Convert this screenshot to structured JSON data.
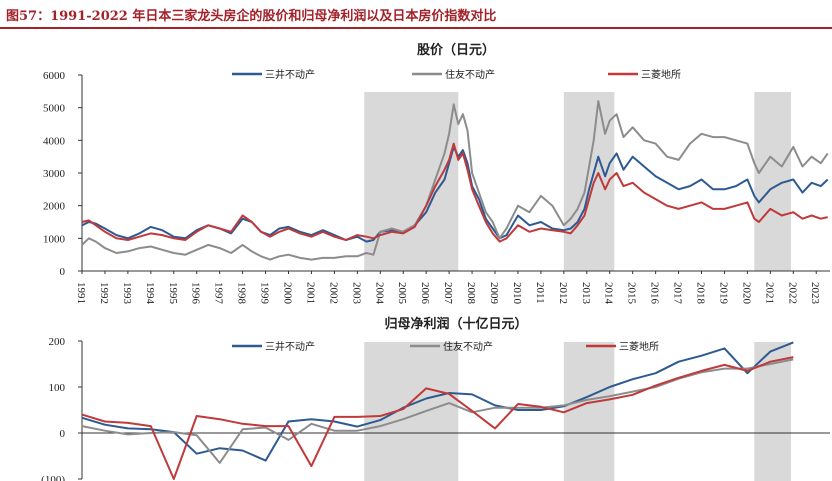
{
  "figure": {
    "title": "图57：1991-2022 年日本三家龙头房企的股价和归母净利润以及日本房价指数对比"
  },
  "colors": {
    "mitsui": "#2e5a92",
    "sumitomo": "#8c8c8c",
    "mitsubishi": "#c0393b",
    "shade": "#d9d9d9",
    "title": "#a3222a"
  },
  "chart_data": [
    {
      "type": "line",
      "title": "股价（日元）",
      "ylim": [
        0,
        6000
      ],
      "yticks": [
        "0",
        "1000",
        "2000",
        "3000",
        "4000",
        "5000",
        "6000"
      ],
      "xticks": [
        "1991",
        "1992",
        "1993",
        "1994",
        "1995",
        "1996",
        "1997",
        "1998",
        "1999",
        "2000",
        "2001",
        "2002",
        "2003",
        "2004",
        "2005",
        "2006",
        "2007",
        "2008",
        "2009",
        "2010",
        "2011",
        "2012",
        "2013",
        "2014",
        "2015",
        "2016",
        "2017",
        "2018",
        "2019",
        "2020",
        "2021",
        "2022",
        "2023"
      ],
      "legend_position": "top",
      "shaded_periods": [
        [
          2003.3,
          2007.4
        ],
        [
          2012.0,
          2014.2
        ],
        [
          2020.3,
          2021.9
        ]
      ],
      "series": [
        {
          "name": "三井不动产",
          "key": "mitsui",
          "x": [
            1991.0,
            1991.3,
            1991.6,
            1992.0,
            1992.5,
            1993.0,
            1993.5,
            1994.0,
            1994.5,
            1995.0,
            1995.5,
            1996.0,
            1996.5,
            1997.0,
            1997.5,
            1998.0,
            1998.4,
            1998.8,
            1999.2,
            1999.6,
            2000.0,
            2000.5,
            2001.0,
            2001.5,
            2002.0,
            2002.5,
            2003.0,
            2003.4,
            2003.7,
            2004.0,
            2004.5,
            2005.0,
            2005.5,
            2006.0,
            2006.4,
            2006.8,
            2007.0,
            2007.2,
            2007.4,
            2007.6,
            2007.8,
            2008.0,
            2008.3,
            2008.6,
            2008.9,
            2009.2,
            2009.5,
            2010.0,
            2010.5,
            2011.0,
            2011.5,
            2012.0,
            2012.3,
            2012.6,
            2012.9,
            2013.1,
            2013.3,
            2013.5,
            2013.8,
            2014.0,
            2014.3,
            2014.6,
            2015.0,
            2015.5,
            2016.0,
            2016.5,
            2017.0,
            2017.5,
            2018.0,
            2018.5,
            2019.0,
            2019.5,
            2020.0,
            2020.3,
            2020.5,
            2021.0,
            2021.5,
            2022.0,
            2022.4,
            2022.8,
            2023.2,
            2023.5
          ],
          "y": [
            1400,
            1500,
            1450,
            1300,
            1100,
            1000,
            1150,
            1350,
            1250,
            1050,
            1000,
            1250,
            1400,
            1300,
            1150,
            1600,
            1500,
            1200,
            1100,
            1300,
            1350,
            1200,
            1100,
            1250,
            1100,
            950,
            1050,
            900,
            950,
            1200,
            1250,
            1200,
            1400,
            1800,
            2400,
            2800,
            3300,
            3800,
            3500,
            3700,
            3300,
            2600,
            2200,
            1600,
            1300,
            1000,
            1100,
            1700,
            1400,
            1500,
            1300,
            1250,
            1300,
            1500,
            1900,
            2500,
            3000,
            3500,
            2900,
            3300,
            3600,
            3100,
            3500,
            3200,
            2900,
            2700,
            2500,
            2600,
            2800,
            2500,
            2500,
            2600,
            2800,
            2300,
            2100,
            2500,
            2700,
            2800,
            2400,
            2700,
            2600,
            2800
          ]
        },
        {
          "name": "住友不动产",
          "key": "sumitomo",
          "x": [
            1991.0,
            1991.3,
            1991.6,
            1992.0,
            1992.5,
            1993.0,
            1993.5,
            1994.0,
            1994.5,
            1995.0,
            1995.5,
            1996.0,
            1996.5,
            1997.0,
            1997.5,
            1998.0,
            1998.4,
            1998.8,
            1999.2,
            1999.6,
            2000.0,
            2000.5,
            2001.0,
            2001.5,
            2002.0,
            2002.5,
            2003.0,
            2003.4,
            2003.7,
            2004.0,
            2004.5,
            2005.0,
            2005.5,
            2006.0,
            2006.4,
            2006.8,
            2007.0,
            2007.2,
            2007.4,
            2007.6,
            2007.8,
            2008.0,
            2008.3,
            2008.6,
            2008.9,
            2009.2,
            2009.5,
            2010.0,
            2010.5,
            2011.0,
            2011.5,
            2012.0,
            2012.3,
            2012.6,
            2012.9,
            2013.1,
            2013.3,
            2013.5,
            2013.8,
            2014.0,
            2014.3,
            2014.6,
            2015.0,
            2015.5,
            2016.0,
            2016.5,
            2017.0,
            2017.5,
            2018.0,
            2018.5,
            2019.0,
            2019.5,
            2020.0,
            2020.3,
            2020.5,
            2021.0,
            2021.5,
            2022.0,
            2022.4,
            2022.8,
            2023.2,
            2023.5
          ],
          "y": [
            800,
            1000,
            900,
            700,
            550,
            600,
            700,
            750,
            650,
            550,
            500,
            650,
            800,
            700,
            550,
            800,
            600,
            450,
            350,
            450,
            500,
            400,
            350,
            400,
            400,
            450,
            450,
            550,
            500,
            1200,
            1300,
            1200,
            1400,
            2000,
            2800,
            3600,
            4200,
            5100,
            4500,
            4800,
            4300,
            3000,
            2400,
            1800,
            1500,
            1000,
            1300,
            2000,
            1800,
            2300,
            2000,
            1400,
            1600,
            1900,
            2400,
            3200,
            4000,
            5200,
            4200,
            4600,
            4800,
            4100,
            4400,
            4000,
            3900,
            3500,
            3400,
            3900,
            4200,
            4100,
            4100,
            4000,
            3900,
            3300,
            3000,
            3500,
            3200,
            3800,
            3200,
            3500,
            3300,
            3600
          ]
        },
        {
          "name": "三菱地所",
          "key": "mitsubishi",
          "x": [
            1991.0,
            1991.3,
            1991.6,
            1992.0,
            1992.5,
            1993.0,
            1993.5,
            1994.0,
            1994.5,
            1995.0,
            1995.5,
            1996.0,
            1996.5,
            1997.0,
            1997.5,
            1998.0,
            1998.4,
            1998.8,
            1999.2,
            1999.6,
            2000.0,
            2000.5,
            2001.0,
            2001.5,
            2002.0,
            2002.5,
            2003.0,
            2003.4,
            2003.7,
            2004.0,
            2004.5,
            2005.0,
            2005.5,
            2006.0,
            2006.4,
            2006.8,
            2007.0,
            2007.2,
            2007.4,
            2007.6,
            2007.8,
            2008.0,
            2008.3,
            2008.6,
            2008.9,
            2009.2,
            2009.5,
            2010.0,
            2010.5,
            2011.0,
            2011.5,
            2012.0,
            2012.3,
            2012.6,
            2012.9,
            2013.1,
            2013.3,
            2013.5,
            2013.8,
            2014.0,
            2014.3,
            2014.6,
            2015.0,
            2015.5,
            2016.0,
            2016.5,
            2017.0,
            2017.5,
            2018.0,
            2018.5,
            2019.0,
            2019.5,
            2020.0,
            2020.3,
            2020.5,
            2021.0,
            2021.5,
            2022.0,
            2022.4,
            2022.8,
            2023.2,
            2023.5
          ],
          "y": [
            1500,
            1550,
            1400,
            1200,
            1000,
            950,
            1050,
            1150,
            1100,
            1000,
            950,
            1200,
            1400,
            1300,
            1200,
            1700,
            1500,
            1200,
            1050,
            1200,
            1300,
            1150,
            1050,
            1200,
            1050,
            950,
            1100,
            1050,
            1000,
            1100,
            1200,
            1150,
            1350,
            2000,
            2600,
            3100,
            3400,
            3900,
            3400,
            3600,
            3100,
            2500,
            2000,
            1500,
            1150,
            900,
            1000,
            1400,
            1200,
            1300,
            1250,
            1200,
            1150,
            1400,
            1700,
            2200,
            2700,
            3000,
            2500,
            2800,
            3000,
            2600,
            2700,
            2400,
            2200,
            2000,
            1900,
            2000,
            2100,
            1900,
            1900,
            2000,
            2100,
            1600,
            1500,
            1900,
            1700,
            1800,
            1600,
            1700,
            1600,
            1650
          ]
        }
      ]
    },
    {
      "type": "line",
      "title": "归母净利润（十亿日元）",
      "ylim": [
        -100,
        200
      ],
      "yticks": [
        "(100)",
        "0",
        "100",
        "200"
      ],
      "legend_position": "top",
      "shaded_periods": [
        [
          2003.3,
          2007.4
        ],
        [
          2012.0,
          2014.2
        ],
        [
          2020.3,
          2021.9
        ]
      ],
      "series": [
        {
          "name": "三井不动产",
          "key": "mitsui",
          "x": [
            1991,
            1992,
            1993,
            1994,
            1995,
            1996,
            1997,
            1998,
            1999,
            2000,
            2001,
            2002,
            2003,
            2004,
            2005,
            2006,
            2007,
            2008,
            2009,
            2010,
            2011,
            2012,
            2013,
            2014,
            2015,
            2016,
            2017,
            2018,
            2019,
            2020,
            2021,
            2022
          ],
          "y": [
            33,
            18,
            10,
            8,
            2,
            -45,
            -33,
            -38,
            -60,
            25,
            30,
            25,
            14,
            28,
            55,
            75,
            87,
            84,
            60,
            50,
            50,
            58,
            78,
            100,
            117,
            130,
            155,
            168,
            184,
            130,
            177,
            197
          ]
        },
        {
          "name": "住友不动产",
          "key": "sumitomo",
          "x": [
            1991,
            1992,
            1993,
            1994,
            1995,
            1996,
            1997,
            1998,
            1999,
            2000,
            2001,
            2002,
            2003,
            2004,
            2005,
            2006,
            2007,
            2008,
            2009,
            2010,
            2011,
            2012,
            2013,
            2014,
            2015,
            2016,
            2017,
            2018,
            2019,
            2020,
            2021,
            2022
          ],
          "y": [
            15,
            5,
            -3,
            0,
            2,
            -5,
            -65,
            8,
            12,
            -15,
            20,
            5,
            5,
            15,
            30,
            48,
            65,
            45,
            55,
            55,
            55,
            60,
            72,
            80,
            90,
            100,
            118,
            132,
            140,
            140,
            150,
            160
          ]
        },
        {
          "name": "三菱地所",
          "key": "mitsubishi",
          "x": [
            1991,
            1992,
            1993,
            1994,
            1995,
            1996,
            1997,
            1998,
            1999,
            2000,
            2001,
            2002,
            2003,
            2004,
            2005,
            2006,
            2007,
            2008,
            2009,
            2010,
            2011,
            2012,
            2013,
            2014,
            2015,
            2016,
            2017,
            2018,
            2019,
            2020,
            2021,
            2022
          ],
          "y": [
            40,
            25,
            22,
            15,
            -100,
            37,
            30,
            20,
            15,
            15,
            -72,
            35,
            35,
            37,
            52,
            97,
            85,
            48,
            10,
            63,
            57,
            45,
            65,
            73,
            83,
            103,
            120,
            135,
            148,
            135,
            155,
            165
          ]
        }
      ]
    }
  ]
}
